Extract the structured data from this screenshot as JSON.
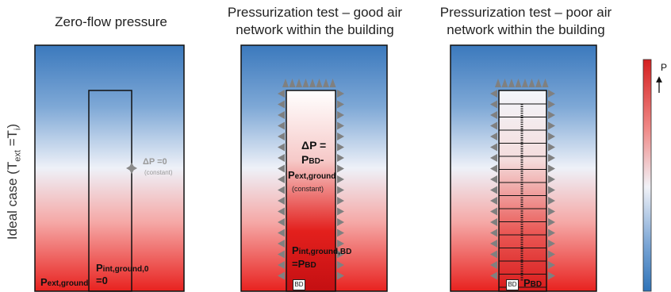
{
  "row_label": {
    "base": "Ideal case (T",
    "sub1": "ext",
    "mid": " =T",
    "sub2": "i",
    "end": ")"
  },
  "panels": [
    {
      "title": "Zero-flow pressure",
      "delta_label": "ΔP =0",
      "delta_note": "(constant)",
      "p_ext_ground": {
        "main": "P",
        "sub": "ext,ground"
      },
      "p_int_ground": {
        "main": "P",
        "sub": "int,ground,0",
        "value": "=0"
      }
    },
    {
      "title_line1": "Pressurization test – good air",
      "title_line2": "network within the building",
      "delta_line1": "ΔP =",
      "delta_line2_main": "P",
      "delta_line2_sub": "BD",
      "delta_line2_suffix": "-",
      "delta_line3_main": "P",
      "delta_line3_sub": "ext,ground",
      "delta_note": "(constant)",
      "p_int": {
        "main": "P",
        "sub": "int,ground,BD",
        "eq_main": "=P",
        "eq_sub": "BD"
      },
      "bd_label": "BD"
    },
    {
      "title_line1": "Pressurization test – poor air",
      "title_line2": "network within the building",
      "bd_label": "BD",
      "p_bd": {
        "main": "P",
        "sub": "BD"
      }
    }
  ],
  "colorbar": {
    "label": "P",
    "top_color": "#d41f1f",
    "bottom_color": "#2f73b8"
  },
  "colors": {
    "red": "#e8221f",
    "blue": "#3b79bd",
    "arrow": "#808080"
  }
}
